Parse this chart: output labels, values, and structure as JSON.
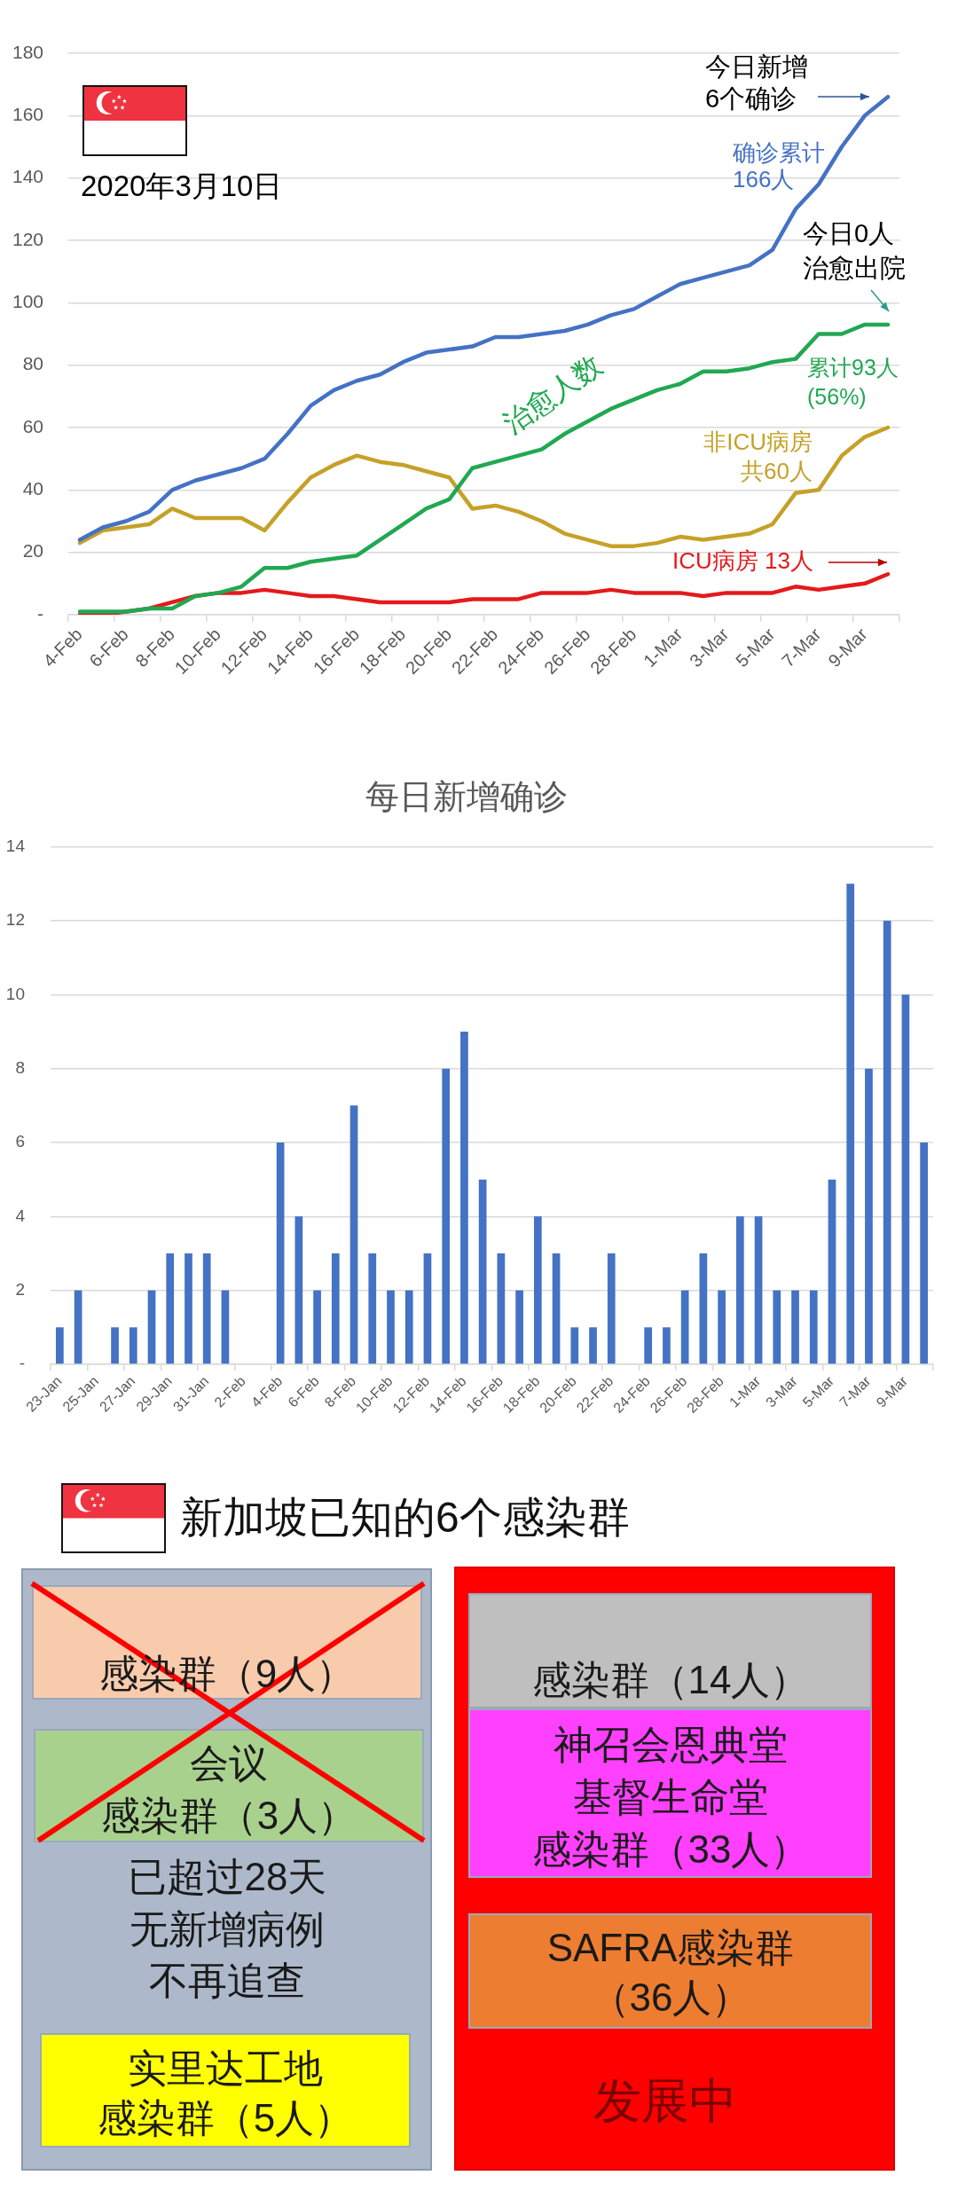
{
  "chart_data": [
    {
      "type": "line",
      "categories": [
        "4-Feb",
        null,
        "6-Feb",
        null,
        "8-Feb",
        null,
        "10-Feb",
        null,
        "12-Feb",
        null,
        "14-Feb",
        null,
        "16-Feb",
        null,
        "18-Feb",
        null,
        "20-Feb",
        null,
        "22-Feb",
        null,
        "24-Feb",
        null,
        "26-Feb",
        null,
        "28-Feb",
        null,
        "1-Mar",
        null,
        "3-Mar",
        null,
        "5-Mar",
        null,
        "7-Mar",
        null,
        "9-Mar",
        null
      ],
      "series": [
        {
          "name": "确诊累计\n166人",
          "color": "#4472c4",
          "values": [
            24,
            28,
            30,
            33,
            40,
            43,
            45,
            47,
            50,
            58,
            67,
            72,
            75,
            77,
            81,
            84,
            85,
            86,
            89,
            89,
            90,
            91,
            93,
            96,
            98,
            102,
            106,
            108,
            110,
            112,
            117,
            130,
            138,
            150,
            160,
            166
          ]
        },
        {
          "name": "治愈人数",
          "color": "#21a852",
          "values": [
            1,
            1,
            1,
            2,
            2,
            6,
            7,
            9,
            15,
            15,
            17,
            18,
            19,
            24,
            29,
            34,
            37,
            47,
            49,
            51,
            53,
            58,
            62,
            66,
            69,
            72,
            74,
            78,
            78,
            79,
            81,
            82,
            90,
            90,
            93,
            93
          ]
        },
        {
          "name": "非ICU病房共60人",
          "color": "#c5a128",
          "values": [
            23,
            27,
            28,
            29,
            34,
            31,
            31,
            31,
            27,
            36,
            44,
            48,
            51,
            49,
            48,
            46,
            44,
            34,
            35,
            33,
            30,
            26,
            24,
            22,
            22,
            23,
            25,
            24,
            25,
            26,
            29,
            39,
            40,
            51,
            57,
            60
          ]
        },
        {
          "name": "ICU病房 13人",
          "color": "#e41a1c",
          "values": [
            0,
            0,
            1,
            2,
            4,
            6,
            7,
            7,
            8,
            7,
            6,
            6,
            5,
            4,
            4,
            4,
            4,
            5,
            5,
            5,
            7,
            7,
            7,
            8,
            7,
            7,
            7,
            6,
            7,
            7,
            7,
            9,
            8,
            9,
            10,
            13
          ]
        }
      ],
      "ylim": [
        0,
        180
      ],
      "yticks": [
        {
          "value": 0,
          "label": "-"
        },
        20,
        40,
        60,
        80,
        100,
        120,
        140,
        160,
        180
      ],
      "grid": "y",
      "annotations": [
        "2020年3月10日",
        "今日新增\n6个确诊",
        "今日0人治愈出院",
        "累计93人\n(56%)"
      ]
    },
    {
      "type": "bar",
      "title": "每日新增确诊",
      "categories": [
        "23-Jan",
        null,
        "25-Jan",
        null,
        "27-Jan",
        null,
        "29-Jan",
        null,
        "31-Jan",
        null,
        "2-Feb",
        null,
        "4-Feb",
        null,
        "6-Feb",
        null,
        "8-Feb",
        null,
        "10-Feb",
        null,
        "12-Feb",
        null,
        "14-Feb",
        null,
        "16-Feb",
        null,
        "18-Feb",
        null,
        "20-Feb",
        null,
        "22-Feb",
        null,
        "24-Feb",
        null,
        "26-Feb",
        null,
        "28-Feb",
        null,
        "1-Mar",
        null,
        "3-Mar",
        null,
        "5-Mar",
        null,
        "7-Mar",
        null,
        "9-Mar",
        null
      ],
      "values": [
        1,
        2,
        0,
        1,
        1,
        2,
        3,
        3,
        3,
        2,
        0,
        0,
        6,
        4,
        2,
        3,
        7,
        3,
        2,
        2,
        3,
        8,
        9,
        5,
        3,
        2,
        4,
        3,
        1,
        1,
        3,
        0,
        1,
        1,
        2,
        3,
        2,
        4,
        4,
        2,
        2,
        2,
        5,
        13,
        8,
        12,
        10,
        6
      ],
      "color": "#4472c4",
      "ylim": [
        0,
        14
      ],
      "yticks": [
        {
          "value": 0,
          "label": "-"
        },
        2,
        4,
        6,
        8,
        10,
        12,
        14
      ],
      "grid": "y"
    },
    {
      "type": "other",
      "title": "新加坡已知的6个感染群",
      "annotations": [
        "感染群（9人）",
        "会议",
        "感染群（3人）",
        "已超过28天",
        "无新增病例",
        "不再追查",
        "实里达工地",
        "感染群（5人）",
        "感染群（14人）",
        "神召会恩典堂",
        "基督生命堂",
        "感染群（33人）",
        "SAFRA感染群",
        "（36人）",
        "发展中"
      ]
    }
  ]
}
